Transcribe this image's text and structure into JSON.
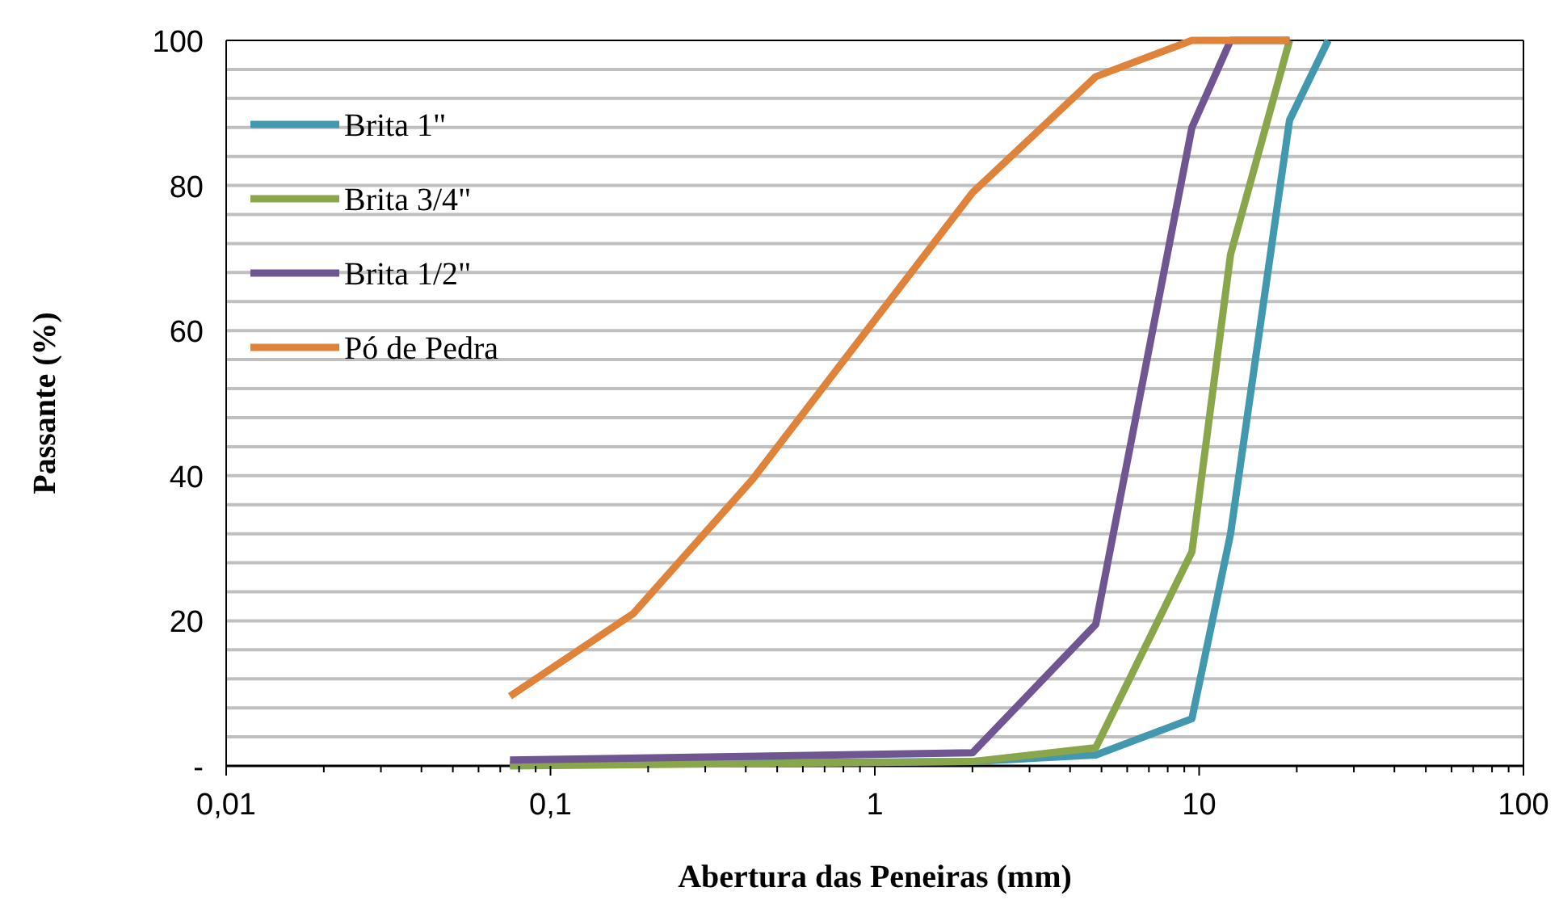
{
  "chart_data": {
    "type": "line",
    "xlabel": "Abertura das Peneiras (mm)",
    "ylabel": "Passante (%)",
    "log": "x",
    "xlim": [
      0.01,
      100
    ],
    "ylim": [
      0,
      100
    ],
    "xticks": [
      {
        "value": 0.01,
        "label": "0,01"
      },
      {
        "value": 0.02,
        "label": null
      },
      {
        "value": 0.03,
        "label": null
      },
      {
        "value": 0.04,
        "label": null
      },
      {
        "value": 0.05,
        "label": null
      },
      {
        "value": 0.06,
        "label": null
      },
      {
        "value": 0.07,
        "label": null
      },
      {
        "value": 0.08,
        "label": null
      },
      {
        "value": 0.09,
        "label": null
      },
      {
        "value": 0.1,
        "label": "0,1"
      },
      {
        "value": 0.2,
        "label": null
      },
      {
        "value": 0.3,
        "label": null
      },
      {
        "value": 0.4,
        "label": null
      },
      {
        "value": 0.5,
        "label": null
      },
      {
        "value": 0.6,
        "label": null
      },
      {
        "value": 0.7,
        "label": null
      },
      {
        "value": 0.8,
        "label": null
      },
      {
        "value": 0.9,
        "label": null
      },
      1,
      {
        "value": 2,
        "label": null
      },
      {
        "value": 3,
        "label": null
      },
      {
        "value": 4,
        "label": null
      },
      {
        "value": 5,
        "label": null
      },
      {
        "value": 6,
        "label": null
      },
      {
        "value": 7,
        "label": null
      },
      {
        "value": 8,
        "label": null
      },
      {
        "value": 9,
        "label": null
      },
      10,
      {
        "value": 20,
        "label": null
      },
      {
        "value": 30,
        "label": null
      },
      {
        "value": 40,
        "label": null
      },
      {
        "value": 50,
        "label": null
      },
      {
        "value": 60,
        "label": null
      },
      {
        "value": 70,
        "label": null
      },
      {
        "value": 80,
        "label": null
      },
      {
        "value": 90,
        "label": null
      },
      100
    ],
    "yticks": [
      {
        "value": 0,
        "label": "-"
      },
      {
        "value": 4,
        "label": null
      },
      {
        "value": 8,
        "label": null
      },
      {
        "value": 12,
        "label": null
      },
      {
        "value": 16,
        "label": null
      },
      20,
      {
        "value": 24,
        "label": null
      },
      {
        "value": 28,
        "label": null
      },
      {
        "value": 32,
        "label": null
      },
      {
        "value": 36,
        "label": null
      },
      40,
      {
        "value": 44,
        "label": null
      },
      {
        "value": 48,
        "label": null
      },
      {
        "value": 52,
        "label": null
      },
      {
        "value": 56,
        "label": null
      },
      60,
      {
        "value": 64,
        "label": null
      },
      {
        "value": 68,
        "label": null
      },
      {
        "value": 72,
        "label": null
      },
      {
        "value": 76,
        "label": null
      },
      80,
      {
        "value": 84,
        "label": null
      },
      {
        "value": 88,
        "label": null
      },
      {
        "value": 92,
        "label": null
      },
      {
        "value": 96,
        "label": null
      },
      100
    ],
    "grid": "y",
    "legend": "top left",
    "line_style": "solid",
    "series": [
      {
        "name": "Brita 1\"",
        "color": "#4198af",
        "x": [
          0.075,
          2,
          4.8,
          9.5,
          12.5,
          19,
          25
        ],
        "values": [
          0.2,
          0.6,
          1.5,
          6.5,
          32,
          89,
          100
        ]
      },
      {
        "name": "Brita 3/4\"",
        "color": "#8aa64b",
        "x": [
          0.075,
          2,
          4.8,
          9.5,
          12.5,
          19
        ],
        "values": [
          0,
          0.6,
          2.5,
          29.5,
          70.5,
          100
        ]
      },
      {
        "name": "Brita 1/2\"",
        "color": "#6f5592",
        "x": [
          0.075,
          2,
          4.8,
          9.5,
          12.5,
          19
        ],
        "values": [
          0.8,
          1.8,
          19.5,
          88,
          100,
          100
        ]
      },
      {
        "name": "Pó de Pedra",
        "color": "#e0833a",
        "x": [
          0.075,
          0.18,
          0.42,
          2,
          4.8,
          9.5,
          19
        ],
        "values": [
          9.6,
          21,
          39.5,
          79,
          95,
          100,
          100
        ]
      }
    ]
  }
}
